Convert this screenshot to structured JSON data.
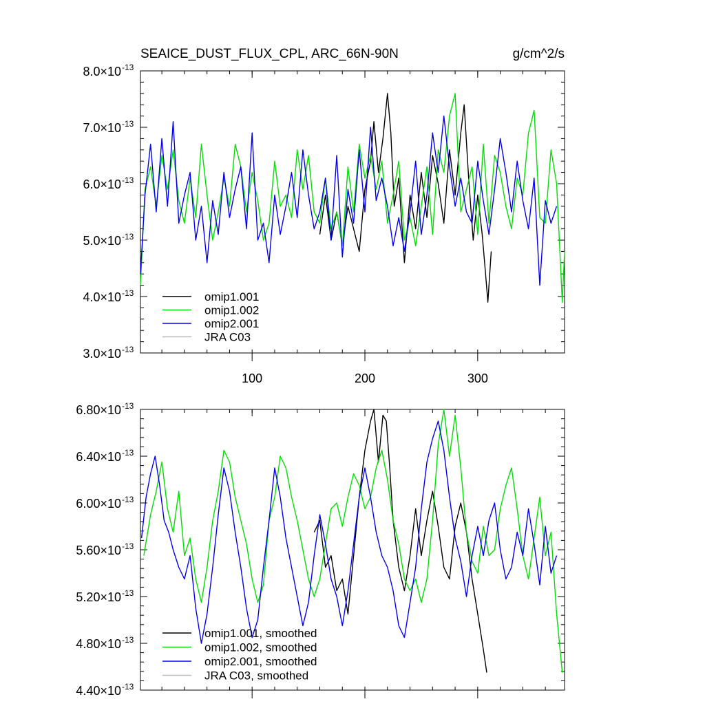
{
  "chart_data": [
    {
      "panel": "top",
      "type": "line",
      "title": "SEAICE_DUST_FLUX_CPL, ARC_66N-90N",
      "units": "g/cm^2/s",
      "x_tick_labels": [
        "100",
        "200",
        "300"
      ],
      "x_ticks": [
        100,
        200,
        300
      ],
      "xlim": [
        1,
        377
      ],
      "ylim": [
        3e-13,
        8e-13
      ],
      "y_ticks": [
        {
          "mantissa": "3.0",
          "times": "×",
          "base": "10",
          "exp": "-13",
          "value": 3e-13
        },
        {
          "mantissa": "4.0",
          "times": "×",
          "base": "10",
          "exp": "-13",
          "value": 4e-13
        },
        {
          "mantissa": "5.0",
          "times": "×",
          "base": "10",
          "exp": "-13",
          "value": 5e-13
        },
        {
          "mantissa": "6.0",
          "times": "×",
          "base": "10",
          "exp": "-13",
          "value": 6e-13
        },
        {
          "mantissa": "7.0",
          "times": "×",
          "base": "10",
          "exp": "-13",
          "value": 7e-13
        },
        {
          "mantissa": "8.0",
          "times": "×",
          "base": "10",
          "exp": "-13",
          "value": 8e-13
        }
      ],
      "legend": [
        {
          "label": "omip1.001",
          "color": "#000000"
        },
        {
          "label": "omip1.002",
          "color": "#00e000"
        },
        {
          "label": "omip2.001",
          "color": "#0000ee"
        },
        {
          "label": "JRA C03",
          "color": "#bbbbbb"
        }
      ],
      "series": [
        {
          "name": "omip1.001",
          "color": "#000000",
          "x": [
            160,
            165,
            170,
            175,
            180,
            185,
            190,
            195,
            200,
            205,
            208,
            212,
            216,
            220,
            223,
            226,
            230,
            235,
            240,
            245,
            250,
            255,
            260,
            265,
            270,
            275,
            280,
            285,
            288,
            292,
            296,
            300,
            304,
            307,
            309,
            312
          ],
          "values": [
            5.1e-13,
            5.8e-13,
            5e-13,
            5.5e-13,
            4.9e-13,
            5.6e-13,
            5.2e-13,
            4.8e-13,
            5.9e-13,
            6.4e-13,
            7.1e-13,
            6.2e-13,
            6.8e-13,
            7.6e-13,
            6.9e-13,
            5.6e-13,
            6.1e-13,
            4.6e-13,
            5.8e-13,
            5.2e-13,
            6.2e-13,
            5.4e-13,
            6.5e-13,
            6e-13,
            5.3e-13,
            6.6e-13,
            5.8e-13,
            6.9e-13,
            7.4e-13,
            6.1e-13,
            5e-13,
            5.8e-13,
            5.1e-13,
            4.4e-13,
            3.9e-13,
            4.8e-13
          ]
        },
        {
          "name": "omip1.002",
          "color": "#00e000",
          "x": [
            1,
            5,
            10,
            15,
            20,
            25,
            30,
            35,
            40,
            45,
            50,
            55,
            60,
            65,
            70,
            75,
            80,
            85,
            90,
            95,
            100,
            105,
            110,
            115,
            120,
            125,
            130,
            135,
            140,
            145,
            150,
            155,
            160,
            165,
            170,
            175,
            180,
            185,
            190,
            195,
            200,
            205,
            210,
            215,
            220,
            225,
            230,
            235,
            240,
            245,
            250,
            255,
            260,
            265,
            270,
            275,
            280,
            285,
            290,
            295,
            300,
            305,
            310,
            315,
            320,
            325,
            330,
            335,
            340,
            345,
            350,
            355,
            360,
            365,
            370,
            375,
            377
          ],
          "values": [
            4.2e-13,
            5.9e-13,
            6.3e-13,
            5.6e-13,
            6.5e-13,
            5.9e-13,
            6.6e-13,
            5.7e-13,
            5.3e-13,
            6.1e-13,
            5.4e-13,
            6.7e-13,
            5.8e-13,
            5e-13,
            5.5e-13,
            6.1e-13,
            5.6e-13,
            6.7e-13,
            6.3e-13,
            5.5e-13,
            6.2e-13,
            5.7e-13,
            5e-13,
            5.3e-13,
            6.4e-13,
            5.6e-13,
            5.8e-13,
            5.4e-13,
            6.6e-13,
            5.9e-13,
            6.5e-13,
            5.5e-13,
            5.3e-13,
            6.1e-13,
            5.2e-13,
            5.5e-13,
            4.9e-13,
            6.3e-13,
            5.5e-13,
            6.7e-13,
            6.1e-13,
            6.5e-13,
            5.9e-13,
            6.4e-13,
            5.3e-13,
            5.8e-13,
            6.4e-13,
            5e-13,
            5.4e-13,
            4.9e-13,
            5.6e-13,
            6.3e-13,
            5.1e-13,
            6.6e-13,
            6.2e-13,
            7.2e-13,
            7.6e-13,
            5.5e-13,
            5.9e-13,
            6.3e-13,
            5.1e-13,
            6.7e-13,
            5.3e-13,
            6.5e-13,
            6.2e-13,
            5.6e-13,
            5.2e-13,
            6.1e-13,
            5.8e-13,
            6.9e-13,
            7.3e-13,
            5.4e-13,
            5.3e-13,
            6.6e-13,
            6e-13,
            3.9e-13,
            4.8e-13
          ]
        },
        {
          "name": "omip2.001",
          "color": "#0000ee",
          "x": [
            1,
            5,
            10,
            15,
            20,
            25,
            30,
            35,
            40,
            45,
            50,
            55,
            60,
            65,
            70,
            75,
            80,
            85,
            90,
            95,
            100,
            105,
            110,
            115,
            120,
            125,
            130,
            135,
            140,
            145,
            150,
            155,
            160,
            165,
            170,
            175,
            180,
            185,
            190,
            195,
            200,
            205,
            210,
            215,
            220,
            225,
            230,
            235,
            240,
            245,
            250,
            255,
            260,
            265,
            270,
            275,
            280,
            285,
            290,
            295,
            300,
            305,
            310,
            315,
            320,
            325,
            330,
            335,
            340,
            345,
            350,
            355,
            360,
            365,
            370
          ],
          "values": [
            4.4e-13,
            5.8e-13,
            6.7e-13,
            5.5e-13,
            6.8e-13,
            5.6e-13,
            7.1e-13,
            5.3e-13,
            5.8e-13,
            6.2e-13,
            5e-13,
            5.6e-13,
            4.6e-13,
            5.7e-13,
            5.1e-13,
            6.2e-13,
            5.4e-13,
            5.9e-13,
            6.3e-13,
            5.2e-13,
            6.9e-13,
            5e-13,
            5.3e-13,
            4.6e-13,
            5.8e-13,
            5.1e-13,
            5.6e-13,
            6.2e-13,
            5.4e-13,
            6.6e-13,
            5.8e-13,
            5.2e-13,
            5.5e-13,
            6.1e-13,
            5e-13,
            6.5e-13,
            4.7e-13,
            5.9e-13,
            5.3e-13,
            6.6e-13,
            5.5e-13,
            7e-13,
            5.7e-13,
            6.1e-13,
            5.6e-13,
            4.9e-13,
            5.4e-13,
            4.8e-13,
            5.5e-13,
            6.4e-13,
            5.1e-13,
            5.8e-13,
            6.9e-13,
            6.2e-13,
            7.2e-13,
            6.3e-13,
            5.6e-13,
            6.1e-13,
            5.5e-13,
            5.3e-13,
            6.4e-13,
            5.7e-13,
            5.1e-13,
            5.9e-13,
            6.8e-13,
            6.2e-13,
            5.5e-13,
            6.4e-13,
            5.7e-13,
            5.2e-13,
            6.1e-13,
            4.2e-13,
            5.7e-13,
            5.3e-13,
            5.6e-13
          ]
        },
        {
          "name": "JRA C03",
          "color": "#bbbbbb",
          "x": [],
          "values": []
        }
      ]
    },
    {
      "panel": "bottom",
      "type": "line",
      "title": "",
      "units": "",
      "x_tick_labels": [],
      "x_ticks": [
        100,
        200,
        300
      ],
      "xlim": [
        1,
        377
      ],
      "ylim": [
        4.4e-13,
        6.8e-13
      ],
      "y_ticks": [
        {
          "mantissa": "4.40",
          "times": "×",
          "base": "10",
          "exp": "-13",
          "value": 4.4e-13
        },
        {
          "mantissa": "4.80",
          "times": "×",
          "base": "10",
          "exp": "-13",
          "value": 4.8e-13
        },
        {
          "mantissa": "5.20",
          "times": "×",
          "base": "10",
          "exp": "-13",
          "value": 5.2e-13
        },
        {
          "mantissa": "5.60",
          "times": "×",
          "base": "10",
          "exp": "-13",
          "value": 5.6e-13
        },
        {
          "mantissa": "6.00",
          "times": "×",
          "base": "10",
          "exp": "-13",
          "value": 6e-13
        },
        {
          "mantissa": "6.40",
          "times": "×",
          "base": "10",
          "exp": "-13",
          "value": 6.4e-13
        },
        {
          "mantissa": "6.80",
          "times": "×",
          "base": "10",
          "exp": "-13",
          "value": 6.8e-13
        }
      ],
      "legend": [
        {
          "label": "omip1.001, smoothed",
          "color": "#000000"
        },
        {
          "label": "omip1.002, smoothed",
          "color": "#00e000"
        },
        {
          "label": "omip2.001, smoothed",
          "color": "#0000ee"
        },
        {
          "label": "JRA C03, smoothed",
          "color": "#bbbbbb"
        }
      ],
      "series": [
        {
          "name": "omip1.001, smoothed",
          "color": "#000000",
          "x": [
            155,
            160,
            165,
            170,
            175,
            180,
            185,
            190,
            195,
            200,
            205,
            208,
            212,
            216,
            219,
            222,
            225,
            230,
            235,
            240,
            245,
            250,
            255,
            260,
            265,
            270,
            275,
            280,
            285,
            290,
            295,
            300,
            305,
            308
          ],
          "values": [
            5.75e-13,
            5.85e-13,
            5.45e-13,
            5.55e-13,
            5.25e-13,
            5.35e-13,
            5.05e-13,
            5.55e-13,
            6.05e-13,
            6.45e-13,
            6.7e-13,
            6.8e-13,
            6.35e-13,
            6.75e-13,
            6.7e-13,
            6.3e-13,
            5.85e-13,
            5.45e-13,
            5.25e-13,
            5.55e-13,
            5.95e-13,
            5.55e-13,
            5.85e-13,
            6.1e-13,
            5.8e-13,
            5.45e-13,
            5.35e-13,
            5.8e-13,
            6e-13,
            5.75e-13,
            5.35e-13,
            5.05e-13,
            4.75e-13,
            4.55e-13
          ]
        },
        {
          "name": "omip1.002, smoothed",
          "color": "#00e000",
          "x": [
            4,
            10,
            15,
            20,
            25,
            30,
            35,
            40,
            45,
            50,
            55,
            60,
            65,
            70,
            75,
            80,
            85,
            90,
            95,
            100,
            105,
            110,
            115,
            120,
            125,
            130,
            135,
            140,
            145,
            150,
            155,
            160,
            165,
            170,
            175,
            180,
            185,
            190,
            195,
            200,
            205,
            210,
            215,
            220,
            225,
            230,
            235,
            240,
            245,
            250,
            255,
            260,
            265,
            270,
            275,
            280,
            285,
            290,
            295,
            300,
            305,
            310,
            315,
            320,
            325,
            330,
            335,
            340,
            345,
            350,
            355,
            360,
            365,
            370,
            375
          ],
          "values": [
            5.55e-13,
            5.9e-13,
            6.1e-13,
            6.35e-13,
            5.95e-13,
            5.75e-13,
            6.1e-13,
            5.55e-13,
            5.7e-13,
            5.35e-13,
            5.15e-13,
            5.45e-13,
            5.85e-13,
            6.1e-13,
            6.45e-13,
            6.35e-13,
            6.05e-13,
            5.85e-13,
            5.65e-13,
            5.35e-13,
            5.15e-13,
            5.3e-13,
            5.85e-13,
            6.05e-13,
            6.4e-13,
            6.3e-13,
            6.05e-13,
            5.85e-13,
            5.6e-13,
            5.35e-13,
            5.2e-13,
            5.35e-13,
            5.65e-13,
            5.95e-13,
            6e-13,
            5.8e-13,
            6.05e-13,
            6.25e-13,
            6.15e-13,
            5.95e-13,
            6.05e-13,
            6.3e-13,
            6.45e-13,
            6.2e-13,
            5.85e-13,
            5.65e-13,
            5.35e-13,
            5.25e-13,
            5.35e-13,
            5.15e-13,
            5.35e-13,
            5.85e-13,
            6.5e-13,
            6.8e-13,
            6.4e-13,
            6.75e-13,
            6.3e-13,
            5.75e-13,
            5.5e-13,
            5.4e-13,
            5.8e-13,
            5.55e-13,
            5.6e-13,
            5.95e-13,
            6.15e-13,
            6.3e-13,
            5.95e-13,
            5.55e-13,
            5.35e-13,
            5.7e-13,
            6.05e-13,
            5.55e-13,
            5.75e-13,
            5.05e-13,
            4.55e-13
          ]
        },
        {
          "name": "omip2.001, smoothed",
          "color": "#0000ee",
          "x": [
            2,
            6,
            10,
            14,
            18,
            22,
            26,
            30,
            35,
            40,
            45,
            50,
            55,
            60,
            65,
            70,
            75,
            80,
            85,
            90,
            95,
            100,
            105,
            110,
            115,
            120,
            125,
            130,
            135,
            140,
            145,
            150,
            155,
            160,
            165,
            170,
            175,
            180,
            185,
            190,
            195,
            200,
            205,
            210,
            215,
            220,
            225,
            230,
            235,
            240,
            245,
            250,
            255,
            260,
            265,
            270,
            275,
            280,
            285,
            290,
            295,
            300,
            305,
            310,
            315,
            320,
            325,
            330,
            335,
            340,
            345,
            350,
            355,
            360,
            365,
            370
          ],
          "values": [
            5.7e-13,
            6.05e-13,
            6.25e-13,
            6.4e-13,
            6.15e-13,
            5.85e-13,
            5.75e-13,
            5.6e-13,
            5.45e-13,
            5.35e-13,
            5.55e-13,
            5.1e-13,
            4.8e-13,
            5.05e-13,
            5.45e-13,
            5.9e-13,
            6.3e-13,
            6.1e-13,
            5.75e-13,
            5.45e-13,
            5.1e-13,
            4.85e-13,
            5e-13,
            5.45e-13,
            5.85e-13,
            6.3e-13,
            6.05e-13,
            5.7e-13,
            5.45e-13,
            5.2e-13,
            4.95e-13,
            5.15e-13,
            5.55e-13,
            5.9e-13,
            5.65e-13,
            5.35e-13,
            5.2e-13,
            4.95e-13,
            5.25e-13,
            5.65e-13,
            6.05e-13,
            6.3e-13,
            6.05e-13,
            5.75e-13,
            5.55e-13,
            5.45e-13,
            5.25e-13,
            4.95e-13,
            4.85e-13,
            5.15e-13,
            5.45e-13,
            5.95e-13,
            6.35e-13,
            6.55e-13,
            6.7e-13,
            6.45e-13,
            6.05e-13,
            5.7e-13,
            5.5e-13,
            5.2e-13,
            5.55e-13,
            5.8e-13,
            5.55e-13,
            5.85e-13,
            6e-13,
            5.6e-13,
            5.35e-13,
            5.45e-13,
            5.75e-13,
            5.55e-13,
            5.95e-13,
            5.65e-13,
            5.3e-13,
            5.8e-13,
            5.4e-13,
            5.55e-13
          ]
        },
        {
          "name": "JRA C03, smoothed",
          "color": "#bbbbbb",
          "x": [],
          "values": []
        }
      ]
    }
  ]
}
